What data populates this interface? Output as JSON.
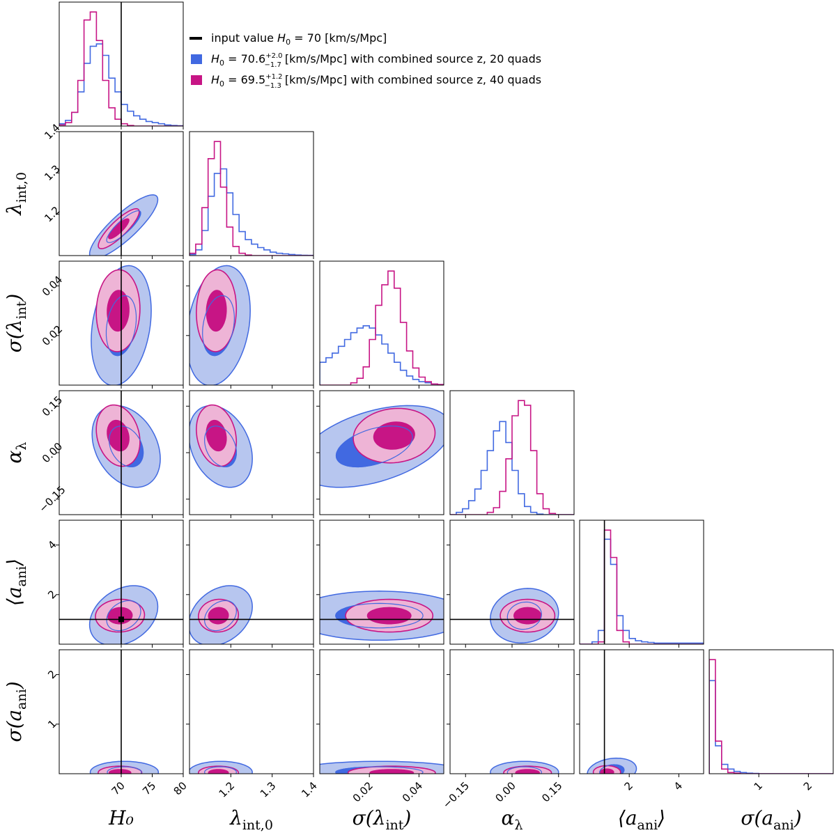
{
  "chart_data": {
    "type": "corner",
    "title": "",
    "colors": {
      "set20": "#4169e1",
      "set40": "#c71585",
      "truth": "#000000"
    },
    "parameters": [
      {
        "id": "H0",
        "label": "H₀",
        "range": [
          60,
          80
        ],
        "ticks": [
          70,
          75,
          80
        ],
        "tick_labels": [
          "70",
          "75",
          "80"
        ],
        "truth": 70,
        "hist20": [
          0.02,
          0.05,
          0.12,
          0.3,
          0.55,
          0.7,
          0.72,
          0.62,
          0.42,
          0.3,
          0.19,
          0.13,
          0.09,
          0.06,
          0.04,
          0.03,
          0.02,
          0.01,
          0.005,
          0.003
        ],
        "hist40": [
          0.01,
          0.03,
          0.12,
          0.4,
          0.93,
          1.0,
          0.75,
          0.4,
          0.16,
          0.06,
          0.02,
          0.005,
          0,
          0,
          0,
          0,
          0,
          0,
          0,
          0
        ]
      },
      {
        "id": "lam",
        "label": "λ_int,0",
        "range": [
          1.1,
          1.4
        ],
        "ticks": [
          1.2,
          1.3,
          1.4
        ],
        "tick_labels": [
          "1.2",
          "1.3",
          "1.4"
        ],
        "truth": null,
        "hist20": [
          0.01,
          0.05,
          0.22,
          0.52,
          0.72,
          0.76,
          0.55,
          0.36,
          0.21,
          0.14,
          0.1,
          0.07,
          0.05,
          0.03,
          0.02,
          0.015,
          0.01,
          0.005,
          0.003,
          0.002
        ],
        "hist40": [
          0.02,
          0.1,
          0.42,
          0.85,
          1.0,
          0.6,
          0.25,
          0.08,
          0.02,
          0.005,
          0,
          0,
          0,
          0,
          0,
          0,
          0,
          0,
          0,
          0
        ]
      },
      {
        "id": "sig_lam",
        "label": "σ(λ_int)",
        "range": [
          0.0,
          0.05
        ],
        "ticks": [
          0.02,
          0.04
        ],
        "tick_labels": [
          "0.02",
          "0.04"
        ],
        "truth": null,
        "hist20": [
          0.2,
          0.24,
          0.28,
          0.34,
          0.4,
          0.46,
          0.5,
          0.52,
          0.5,
          0.44,
          0.36,
          0.28,
          0.2,
          0.13,
          0.08,
          0.05,
          0.03,
          0.02,
          0.01,
          0.005
        ],
        "hist40": [
          0,
          0,
          0,
          0,
          0,
          0.02,
          0.06,
          0.16,
          0.4,
          0.7,
          0.88,
          1.0,
          0.85,
          0.55,
          0.3,
          0.15,
          0.07,
          0.03,
          0.01,
          0.005
        ]
      },
      {
        "id": "alpha",
        "label": "α_λ",
        "range": [
          -0.2,
          0.2
        ],
        "ticks": [
          -0.15,
          0.0,
          0.15
        ],
        "tick_labels": [
          "−0.15",
          "0.00",
          "0.15"
        ],
        "truth": null,
        "hist20": [
          0,
          0.02,
          0.05,
          0.12,
          0.22,
          0.38,
          0.55,
          0.72,
          0.8,
          0.62,
          0.38,
          0.18,
          0.07,
          0.02,
          0.005,
          0,
          0,
          0,
          0,
          0
        ],
        "hist40": [
          0,
          0,
          0,
          0,
          0,
          0,
          0.02,
          0.06,
          0.2,
          0.48,
          0.85,
          0.98,
          0.94,
          0.55,
          0.18,
          0.05,
          0.01,
          0,
          0,
          0
        ]
      },
      {
        "id": "a_ani",
        "label": "⟨a_ani⟩",
        "range": [
          0.0,
          5.0
        ],
        "ticks": [
          2,
          4
        ],
        "tick_labels": [
          "2",
          "4"
        ],
        "truth": 1.0,
        "hist20": [
          0,
          0,
          0.02,
          0.12,
          0.92,
          0.7,
          0.25,
          0.12,
          0.05,
          0.03,
          0.02,
          0.015,
          0.01,
          0.01,
          0.01,
          0.01,
          0.01,
          0.01,
          0.01,
          0.01
        ],
        "hist40": [
          0,
          0,
          0,
          0.02,
          1.0,
          0.76,
          0.12,
          0.02,
          0,
          0,
          0,
          0,
          0,
          0,
          0,
          0,
          0,
          0,
          0,
          0
        ]
      },
      {
        "id": "sig_a",
        "label": "σ(a_ani)",
        "range": [
          0.0,
          2.5
        ],
        "ticks": [
          1,
          2
        ],
        "tick_labels": [
          "1",
          "2"
        ],
        "truth": null,
        "hist20": [
          0.8,
          0.24,
          0.08,
          0.04,
          0.02,
          0.01,
          0.005,
          0.003,
          0,
          0,
          0,
          0,
          0,
          0,
          0,
          0,
          0,
          0,
          0,
          0
        ],
        "hist40": [
          0.98,
          0.28,
          0.04,
          0.01,
          0.005,
          0,
          0,
          0,
          0,
          0,
          0,
          0,
          0,
          0,
          0,
          0,
          0,
          0,
          0,
          0
        ]
      }
    ],
    "legend": [
      {
        "kind": "line",
        "color": "#000000",
        "text": "input value H₀ =  70 [km/s/Mpc]"
      },
      {
        "kind": "patch",
        "color": "#4169e1",
        "text": "H₀ = 70.6⁺²·⁰₋₁.₇ [km/s/Mpc] with combined source z, 20 quads"
      },
      {
        "kind": "patch",
        "color": "#c71585",
        "text": "H₀ = 69.5⁺¹·²₋₁.₃ [km/s/Mpc] with combined source z, 40 quads"
      }
    ],
    "legend_parts": [
      {
        "name": "input value ",
        "sym": "H",
        "sub": "0",
        "rest": " =  70 [km/s/Mpc]"
      },
      {
        "sym": "H",
        "sub": "0",
        "eq": " = 70.6",
        "sup": "+2.0",
        "low": "−1.7",
        "rest": " [km/s/Mpc] with combined source z, 20 quads"
      },
      {
        "sym": "H",
        "sub": "0",
        "eq": " = 69.5",
        "sup": "+1.2",
        "low": "−1.3",
        "rest": " [km/s/Mpc] with combined source z, 40 quads"
      }
    ],
    "pairs": [
      {
        "x": "H0",
        "y": "lam",
        "set20": {
          "mu": [
            70.4,
            1.17
          ],
          "sd": [
            2.5,
            0.035
          ],
          "rho": 0.85
        },
        "set40": {
          "mu": [
            69.6,
            1.165
          ],
          "sd": [
            1.5,
            0.022
          ],
          "rho": 0.85
        }
      },
      {
        "x": "H0",
        "y": "sig_lam",
        "set20": {
          "mu": [
            70.0,
            0.024
          ],
          "sd": [
            2.2,
            0.011
          ],
          "rho": 0.25
        },
        "set40": {
          "mu": [
            69.5,
            0.03
          ],
          "sd": [
            1.6,
            0.0075
          ],
          "rho": 0.05
        }
      },
      {
        "x": "lam",
        "y": "sig_lam",
        "set20": {
          "mu": [
            1.17,
            0.024
          ],
          "sd": [
            0.035,
            0.011
          ],
          "rho": 0.25
        },
        "set40": {
          "mu": [
            1.165,
            0.03
          ],
          "sd": [
            0.022,
            0.0075
          ],
          "rho": 0.05
        }
      },
      {
        "x": "H0",
        "y": "alpha",
        "set20": {
          "mu": [
            70.8,
            0.02
          ],
          "sd": [
            2.5,
            0.06
          ],
          "rho": -0.3
        },
        "set40": {
          "mu": [
            69.5,
            0.055
          ],
          "sd": [
            1.6,
            0.045
          ],
          "rho": -0.2
        }
      },
      {
        "x": "lam",
        "y": "alpha",
        "set20": {
          "mu": [
            1.175,
            0.02
          ],
          "sd": [
            0.035,
            0.06
          ],
          "rho": -0.3
        },
        "set40": {
          "mu": [
            1.165,
            0.055
          ],
          "sd": [
            0.022,
            0.045
          ],
          "rho": -0.2
        }
      },
      {
        "x": "sig_lam",
        "y": "alpha",
        "set20": {
          "mu": [
            0.022,
            0.02
          ],
          "sd": [
            0.014,
            0.06
          ],
          "rho": 0.45
        },
        "set40": {
          "mu": [
            0.03,
            0.055
          ],
          "sd": [
            0.0075,
            0.04
          ],
          "rho": 0.1
        }
      },
      {
        "x": "H0",
        "y": "a_ani",
        "set20": {
          "mu": [
            70.4,
            1.15
          ],
          "sd": [
            2.5,
            0.55
          ],
          "rho": 0.3
        },
        "set40": {
          "mu": [
            69.8,
            1.15
          ],
          "sd": [
            1.8,
            0.3
          ],
          "rho": 0.05
        }
      },
      {
        "x": "lam",
        "y": "a_ani",
        "set20": {
          "mu": [
            1.175,
            1.15
          ],
          "sd": [
            0.035,
            0.55
          ],
          "rho": 0.3
        },
        "set40": {
          "mu": [
            1.17,
            1.15
          ],
          "sd": [
            0.022,
            0.3
          ],
          "rho": 0.05
        }
      },
      {
        "x": "sig_lam",
        "y": "a_ani",
        "set20": {
          "mu": [
            0.024,
            1.15
          ],
          "sd": [
            0.016,
            0.45
          ],
          "rho": 0.0
        },
        "set40": {
          "mu": [
            0.028,
            1.15
          ],
          "sd": [
            0.008,
            0.3
          ],
          "rho": 0.0
        }
      },
      {
        "x": "alpha",
        "y": "a_ani",
        "set20": {
          "mu": [
            0.04,
            1.15
          ],
          "sd": [
            0.05,
            0.5
          ],
          "rho": 0.1
        },
        "set40": {
          "mu": [
            0.05,
            1.15
          ],
          "sd": [
            0.04,
            0.3
          ],
          "rho": 0.0
        }
      },
      {
        "x": "H0",
        "y": "sig_a",
        "set20": {
          "mu": [
            70.5,
            0.03
          ],
          "sd": [
            2.5,
            0.1
          ],
          "rho": 0.0
        },
        "set40": {
          "mu": [
            69.8,
            0.02
          ],
          "sd": [
            1.6,
            0.06
          ],
          "rho": 0.0
        }
      },
      {
        "x": "lam",
        "y": "sig_a",
        "set20": {
          "mu": [
            1.175,
            0.03
          ],
          "sd": [
            0.035,
            0.1
          ],
          "rho": 0.0
        },
        "set40": {
          "mu": [
            1.17,
            0.02
          ],
          "sd": [
            0.022,
            0.06
          ],
          "rho": 0.0
        }
      },
      {
        "x": "sig_lam",
        "y": "sig_a",
        "set20": {
          "mu": [
            0.024,
            0.03
          ],
          "sd": [
            0.016,
            0.1
          ],
          "rho": 0.0
        },
        "set40": {
          "mu": [
            0.029,
            0.02
          ],
          "sd": [
            0.008,
            0.06
          ],
          "rho": 0.0
        }
      },
      {
        "x": "alpha",
        "y": "sig_a",
        "set20": {
          "mu": [
            0.04,
            0.03
          ],
          "sd": [
            0.05,
            0.1
          ],
          "rho": 0.0
        },
        "set40": {
          "mu": [
            0.05,
            0.02
          ],
          "sd": [
            0.035,
            0.06
          ],
          "rho": 0.0
        }
      },
      {
        "x": "a_ani",
        "y": "sig_a",
        "set20": {
          "mu": [
            1.3,
            0.05
          ],
          "sd": [
            0.45,
            0.12
          ],
          "rho": 0.2
        },
        "set40": {
          "mu": [
            1.1,
            0.03
          ],
          "sd": [
            0.25,
            0.06
          ],
          "rho": 0.0
        }
      }
    ]
  }
}
